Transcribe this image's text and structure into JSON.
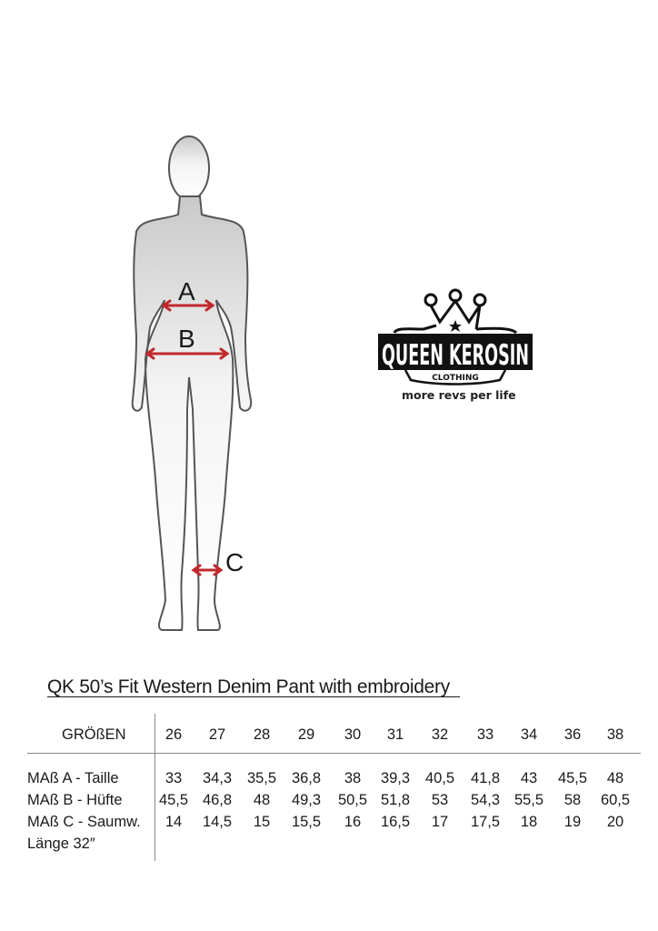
{
  "figure": {
    "labels": {
      "a": "A",
      "b": "B",
      "c": "C"
    },
    "arrow_color": "#c0282d"
  },
  "logo": {
    "brand": "QUEEN KEROSIN",
    "sub": "CLOTHING",
    "tagline": "more revs per life"
  },
  "title": "QK 50’s Fit Western Denim Pant with embroidery  ",
  "table": {
    "header_label": "GRÖßEN",
    "sizes": [
      "26",
      "27",
      "28",
      "29",
      "30",
      "31",
      "32",
      "33",
      "34",
      "36",
      "38"
    ],
    "rows": [
      {
        "label": "MAß A - Taille",
        "values": [
          "33",
          "34,3",
          "35,5",
          "36,8",
          "38",
          "39,3",
          "40,5",
          "41,8",
          "43",
          "45,5",
          "48"
        ]
      },
      {
        "label": "MAß B - Hüfte",
        "values": [
          "45,5",
          "46,8",
          "48",
          "49,3",
          "50,5",
          "51,8",
          "53",
          "54,3",
          "55,5",
          "58",
          "60,5"
        ]
      },
      {
        "label": "MAß C - Saumw.",
        "values": [
          "14",
          "14,5",
          "15",
          "15,5",
          "16",
          "16,5",
          "17",
          "17,5",
          "18",
          "19",
          "20"
        ]
      },
      {
        "label": "Länge  32″",
        "values": []
      }
    ]
  }
}
